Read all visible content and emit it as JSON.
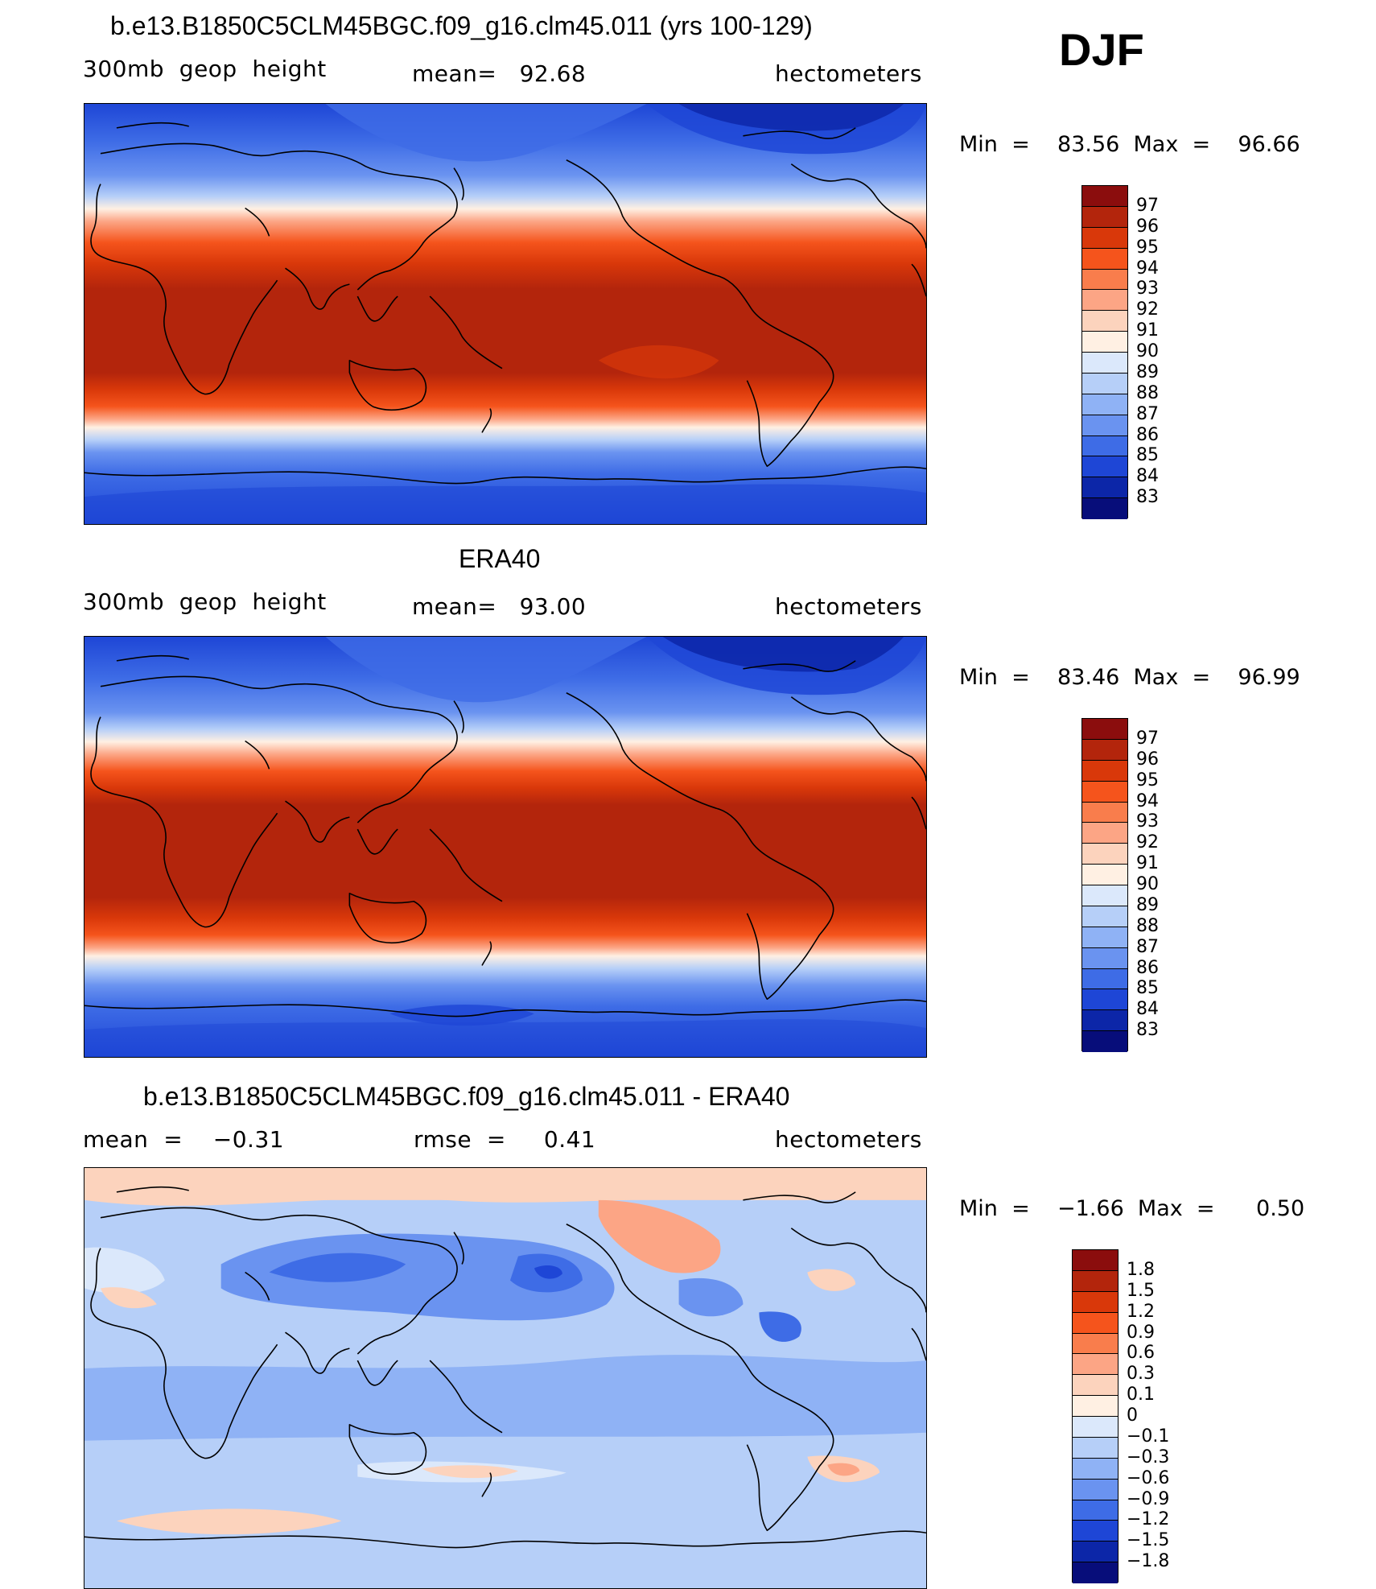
{
  "season": "DJF",
  "panels": [
    {
      "id": "model",
      "title": "b.e13.B1850C5CLM45BGC.f09_g16.clm45.011 (yrs 100-129)",
      "left_label": "300mb  geop  height",
      "center_label": "mean=   92.68",
      "right_label": "hectometers",
      "min_max": "Min  =    83.56  Max  =    96.66",
      "colorbar": {
        "levels": [
          "97",
          "96",
          "95",
          "94",
          "93",
          "92",
          "91",
          "90",
          "89",
          "88",
          "87",
          "86",
          "85",
          "84",
          "83"
        ],
        "colors": [
          "#8b0d0d",
          "#b3250c",
          "#d9380a",
          "#f5541c",
          "#f97d4c",
          "#fca585",
          "#fcd3bd",
          "#fff0e3",
          "#dbe8fb",
          "#b6cff8",
          "#8fb2f5",
          "#6a93f0",
          "#3e6ce6",
          "#1e46d6",
          "#0c26a8",
          "#070d7a"
        ]
      }
    },
    {
      "id": "obs",
      "title": "ERA40",
      "left_label": "300mb  geop  height",
      "center_label": "mean=   93.00",
      "right_label": "hectometers",
      "min_max": "Min  =    83.46  Max  =    96.99",
      "colorbar": {
        "levels": [
          "97",
          "96",
          "95",
          "94",
          "93",
          "92",
          "91",
          "90",
          "89",
          "88",
          "87",
          "86",
          "85",
          "84",
          "83"
        ],
        "colors": [
          "#8b0d0d",
          "#b3250c",
          "#d9380a",
          "#f5541c",
          "#f97d4c",
          "#fca585",
          "#fcd3bd",
          "#fff0e3",
          "#dbe8fb",
          "#b6cff8",
          "#8fb2f5",
          "#6a93f0",
          "#3e6ce6",
          "#1e46d6",
          "#0c26a8",
          "#070d7a"
        ]
      }
    },
    {
      "id": "diff",
      "title": "b.e13.B1850C5CLM45BGC.f09_g16.clm45.011 - ERA40",
      "left_label": "mean  =    −0.31",
      "center_label": "rmse  =     0.41",
      "right_label": "hectometers",
      "min_max": "Min  =    −1.66  Max  =      0.50",
      "colorbar": {
        "levels": [
          "1.8",
          "1.5",
          "1.2",
          "0.9",
          "0.6",
          "0.3",
          "0.1",
          "0",
          "−0.1",
          "−0.3",
          "−0.6",
          "−0.9",
          "−1.2",
          "−1.5",
          "−1.8"
        ],
        "colors": [
          "#8b0d0d",
          "#b3250c",
          "#d9380a",
          "#f5541c",
          "#f97d4c",
          "#fca585",
          "#fcd3bd",
          "#fff0e3",
          "#dbe8fb",
          "#b6cff8",
          "#8fb2f5",
          "#6a93f0",
          "#3e6ce6",
          "#1e46d6",
          "#0c26a8",
          "#070d7a"
        ]
      }
    }
  ]
}
